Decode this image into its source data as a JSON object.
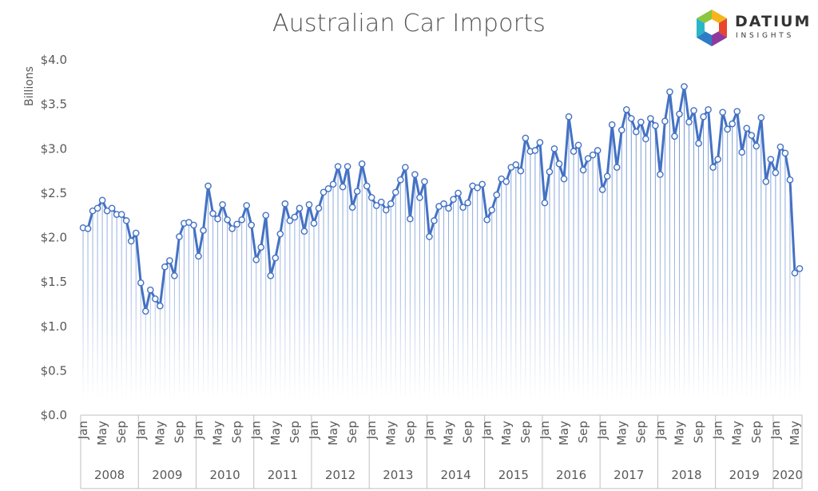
{
  "logo": {
    "name": "DATIUM",
    "tagline": "INSIGHTS"
  },
  "chart_data": {
    "type": "line",
    "title": "Australian Car Imports",
    "ylabel": "Billions",
    "xlabel": "",
    "ylim": [
      0,
      4
    ],
    "yticks": [
      "$0.0",
      "$0.5",
      "$1.0",
      "$1.5",
      "$2.0",
      "$2.5",
      "$3.0",
      "$3.5",
      "$4.0"
    ],
    "grid": false,
    "legend": "none",
    "color": "#4472C4",
    "month_ticks": [
      "Jan",
      "May",
      "Sep"
    ],
    "years": [
      {
        "label": "2008",
        "values": [
          2.11,
          2.1,
          2.3,
          2.33,
          2.42,
          2.3,
          2.33,
          2.26,
          2.26,
          2.19,
          1.96,
          2.05
        ]
      },
      {
        "label": "2009",
        "values": [
          1.49,
          1.17,
          1.41,
          1.31,
          1.23,
          1.67,
          1.74,
          1.57,
          2.01,
          2.16,
          2.17,
          2.14
        ]
      },
      {
        "label": "2010",
        "values": [
          1.79,
          2.08,
          2.58,
          2.27,
          2.21,
          2.37,
          2.2,
          2.1,
          2.15,
          2.2,
          2.36,
          2.14
        ]
      },
      {
        "label": "2011",
        "values": [
          1.75,
          1.89,
          2.25,
          1.57,
          1.77,
          2.04,
          2.38,
          2.19,
          2.23,
          2.33,
          2.07,
          2.37
        ]
      },
      {
        "label": "2012",
        "values": [
          2.16,
          2.33,
          2.51,
          2.55,
          2.6,
          2.8,
          2.57,
          2.8,
          2.34,
          2.52,
          2.83,
          2.58
        ]
      },
      {
        "label": "2013",
        "values": [
          2.45,
          2.36,
          2.4,
          2.31,
          2.38,
          2.51,
          2.65,
          2.79,
          2.21,
          2.71,
          2.45,
          2.63
        ]
      },
      {
        "label": "2014",
        "values": [
          2.01,
          2.19,
          2.35,
          2.38,
          2.33,
          2.43,
          2.5,
          2.34,
          2.39,
          2.58,
          2.56,
          2.6
        ]
      },
      {
        "label": "2015",
        "values": [
          2.2,
          2.31,
          2.48,
          2.66,
          2.63,
          2.79,
          2.82,
          2.75,
          3.12,
          2.97,
          2.98,
          3.07
        ]
      },
      {
        "label": "2016",
        "values": [
          2.39,
          2.74,
          3.0,
          2.83,
          2.66,
          3.36,
          2.97,
          3.04,
          2.76,
          2.89,
          2.93,
          2.98
        ]
      },
      {
        "label": "2017",
        "values": [
          2.54,
          2.69,
          3.27,
          2.79,
          3.21,
          3.44,
          3.34,
          3.19,
          3.3,
          3.11,
          3.34,
          3.26
        ]
      },
      {
        "label": "2018",
        "values": [
          2.71,
          3.31,
          3.64,
          3.14,
          3.39,
          3.7,
          3.3,
          3.43,
          3.06,
          3.36,
          3.44,
          2.79
        ]
      },
      {
        "label": "2019",
        "values": [
          2.88,
          3.41,
          3.22,
          3.28,
          3.42,
          2.96,
          3.23,
          3.15,
          3.03,
          3.35,
          2.63,
          2.88
        ]
      },
      {
        "label": "2020",
        "values": [
          2.73,
          3.02,
          2.95,
          2.65,
          1.6,
          1.65
        ]
      }
    ]
  }
}
